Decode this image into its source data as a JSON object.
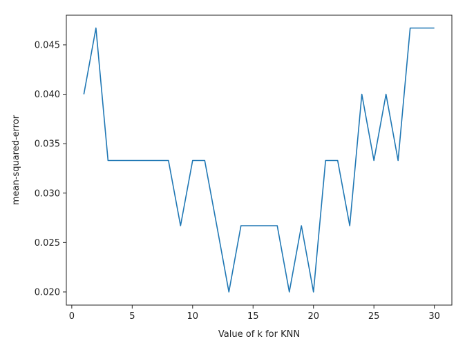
{
  "chart_data": {
    "type": "line",
    "title": "",
    "xlabel": "Value of k for KNN",
    "ylabel": "mean-squared-error",
    "xlim": [
      -0.45,
      31.45
    ],
    "ylim": [
      0.01867,
      0.048
    ],
    "x_ticks": [
      0,
      5,
      10,
      15,
      20,
      25,
      30
    ],
    "x_tick_labels": [
      "0",
      "5",
      "10",
      "15",
      "20",
      "25",
      "30"
    ],
    "y_ticks": [
      0.02,
      0.025,
      0.03,
      0.035,
      0.04,
      0.045
    ],
    "y_tick_labels": [
      "0.020",
      "0.025",
      "0.030",
      "0.035",
      "0.040",
      "0.045"
    ],
    "grid": false,
    "line_color": "#1f77b4",
    "x": [
      1,
      2,
      3,
      4,
      5,
      6,
      7,
      8,
      9,
      10,
      11,
      12,
      13,
      14,
      15,
      16,
      17,
      18,
      19,
      20,
      21,
      22,
      23,
      24,
      25,
      26,
      27,
      28,
      29,
      30
    ],
    "values": [
      0.04,
      0.0467,
      0.0333,
      0.0333,
      0.0333,
      0.0333,
      0.0333,
      0.0333,
      0.0267,
      0.0333,
      0.0333,
      0.0267,
      0.02,
      0.0267,
      0.0267,
      0.0267,
      0.0267,
      0.02,
      0.0267,
      0.02,
      0.0333,
      0.0333,
      0.0267,
      0.04,
      0.0333,
      0.04,
      0.0333,
      0.0467,
      0.0467,
      0.0467
    ]
  }
}
